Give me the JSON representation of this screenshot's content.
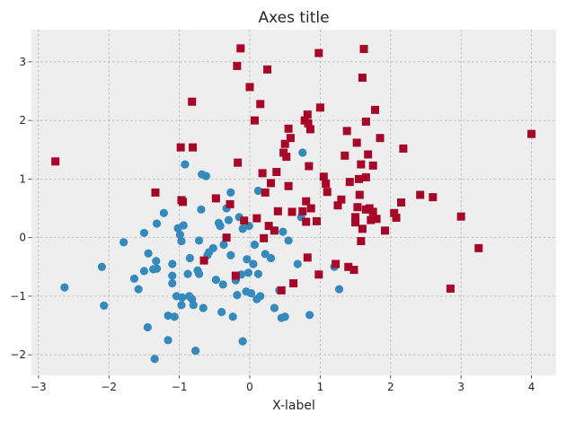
{
  "chart_data": {
    "type": "scatter",
    "title": "Axes title",
    "xlabel": "X-label",
    "ylabel": "",
    "xlim": [
      -3.1,
      4.35
    ],
    "ylim": [
      -2.35,
      3.55
    ],
    "xticks": [
      -3,
      -2,
      -1,
      0,
      1,
      2,
      3,
      4
    ],
    "yticks": [
      -2,
      -1,
      0,
      1,
      2,
      3
    ],
    "xtick_labels": [
      "−3",
      "−2",
      "−1",
      "0",
      "1",
      "2",
      "3",
      "4"
    ],
    "ytick_labels": [
      "−2",
      "−1",
      "0",
      "1",
      "2",
      "3"
    ],
    "grid": true,
    "style": "bmh",
    "background": "#eeeeee",
    "series": [
      {
        "marker": "circle",
        "color": "#348abd",
        "points": [
          [
            -2.63,
            -0.85
          ],
          [
            -2.07,
            -1.16
          ],
          [
            -2.1,
            -0.5
          ],
          [
            -1.79,
            -0.08
          ],
          [
            -1.64,
            -0.7
          ],
          [
            -1.58,
            -0.88
          ],
          [
            -1.5,
            0.08
          ],
          [
            -1.44,
            -0.27
          ],
          [
            -1.5,
            -0.57
          ],
          [
            -1.45,
            -1.53
          ],
          [
            -1.37,
            -0.54
          ],
          [
            -1.32,
            -0.53
          ],
          [
            -1.33,
            -0.4
          ],
          [
            -1.32,
            0.24
          ],
          [
            -1.35,
            -2.07
          ],
          [
            -1.22,
            0.42
          ],
          [
            -1.16,
            -1.33
          ],
          [
            -1.16,
            -1.75
          ],
          [
            -1.1,
            -0.78
          ],
          [
            -1.1,
            -0.65
          ],
          [
            -1.07,
            -1.35
          ],
          [
            -1.1,
            -0.45
          ],
          [
            -1.04,
            -1.0
          ],
          [
            -1.02,
            0.16
          ],
          [
            -0.99,
            0.05
          ],
          [
            -0.97,
            -0.06
          ],
          [
            -0.96,
            -1.02
          ],
          [
            -0.97,
            -1.15
          ],
          [
            -0.94,
            0.21
          ],
          [
            -0.92,
            1.25
          ],
          [
            -0.88,
            -0.62
          ],
          [
            -0.86,
            -1.0
          ],
          [
            -0.85,
            -0.35
          ],
          [
            -0.82,
            -1.05
          ],
          [
            -0.8,
            -1.15
          ],
          [
            -0.77,
            -1.93
          ],
          [
            -0.74,
            -0.56
          ],
          [
            -0.72,
            -0.62
          ],
          [
            -0.72,
            -0.05
          ],
          [
            -0.69,
            0.48
          ],
          [
            -0.68,
            1.08
          ],
          [
            -0.66,
            -1.2
          ],
          [
            -0.62,
            1.05
          ],
          [
            -0.6,
            -0.3
          ],
          [
            -0.58,
            -0.25
          ],
          [
            -0.52,
            -0.18
          ],
          [
            -0.48,
            0.67
          ],
          [
            -0.48,
            -0.72
          ],
          [
            -0.44,
            0.25
          ],
          [
            -0.42,
            0.2
          ],
          [
            -0.42,
            0.2
          ],
          [
            -0.4,
            -1.27
          ],
          [
            -0.38,
            -0.8
          ],
          [
            -0.37,
            -0.12
          ],
          [
            -0.33,
            0.5
          ],
          [
            -0.3,
            0.3
          ],
          [
            -0.27,
            0.77
          ],
          [
            -0.27,
            -0.3
          ],
          [
            -0.24,
            -1.35
          ],
          [
            -0.2,
            -0.73
          ],
          [
            -0.18,
            -0.98
          ],
          [
            -0.15,
            0.35
          ],
          [
            -0.12,
            -0.63
          ],
          [
            -0.1,
            -1.77
          ],
          [
            -0.1,
            0.15
          ],
          [
            -0.05,
            -0.92
          ],
          [
            -0.04,
            -0.37
          ],
          [
            -0.02,
            -0.6
          ],
          [
            -0.01,
            0.2
          ],
          [
            0.02,
            -0.95
          ],
          [
            0.05,
            -0.45
          ],
          [
            0.07,
            -0.12
          ],
          [
            0.1,
            -1.05
          ],
          [
            0.12,
            0.8
          ],
          [
            0.12,
            -0.62
          ],
          [
            0.15,
            -1.0
          ],
          [
            0.22,
            -0.28
          ],
          [
            0.3,
            -0.35
          ],
          [
            0.35,
            -1.2
          ],
          [
            0.42,
            -0.9
          ],
          [
            0.45,
            -1.37
          ],
          [
            0.47,
            0.1
          ],
          [
            0.5,
            -1.35
          ],
          [
            0.55,
            -0.05
          ],
          [
            0.68,
            -0.45
          ],
          [
            0.73,
            0.35
          ],
          [
            0.75,
            1.45
          ],
          [
            0.85,
            -1.32
          ],
          [
            1.2,
            -0.5
          ],
          [
            1.27,
            -0.88
          ]
        ]
      },
      {
        "marker": "square",
        "color": "#a60628",
        "points": [
          [
            -2.76,
            1.3
          ],
          [
            -1.34,
            0.77
          ],
          [
            -0.98,
            1.54
          ],
          [
            -0.97,
            0.64
          ],
          [
            -0.95,
            0.61
          ],
          [
            -0.82,
            2.32
          ],
          [
            -0.81,
            1.54
          ],
          [
            -0.65,
            -0.39
          ],
          [
            -0.48,
            0.67
          ],
          [
            -0.33,
            0.0
          ],
          [
            -0.28,
            0.57
          ],
          [
            -0.2,
            -0.65
          ],
          [
            -0.18,
            2.93
          ],
          [
            -0.17,
            1.28
          ],
          [
            -0.13,
            3.23
          ],
          [
            -0.08,
            0.29
          ],
          [
            0.0,
            2.57
          ],
          [
            0.07,
            2.0
          ],
          [
            0.1,
            0.33
          ],
          [
            0.15,
            2.28
          ],
          [
            0.18,
            1.1
          ],
          [
            0.2,
            -0.01
          ],
          [
            0.22,
            0.77
          ],
          [
            0.25,
            2.87
          ],
          [
            0.27,
            0.2
          ],
          [
            0.3,
            0.93
          ],
          [
            0.35,
            0.12
          ],
          [
            0.38,
            1.12
          ],
          [
            0.4,
            0.45
          ],
          [
            0.45,
            -0.9
          ],
          [
            0.48,
            1.45
          ],
          [
            0.5,
            1.6
          ],
          [
            0.52,
            1.38
          ],
          [
            0.55,
            1.86
          ],
          [
            0.55,
            0.88
          ],
          [
            0.58,
            1.7
          ],
          [
            0.6,
            0.44
          ],
          [
            0.62,
            -0.78
          ],
          [
            0.75,
            0.45
          ],
          [
            0.78,
            2.0
          ],
          [
            0.8,
            0.62
          ],
          [
            0.8,
            0.27
          ],
          [
            0.82,
            -0.34
          ],
          [
            0.82,
            2.1
          ],
          [
            0.83,
            1.95
          ],
          [
            0.84,
            1.22
          ],
          [
            0.86,
            1.85
          ],
          [
            0.87,
            0.5
          ],
          [
            0.95,
            0.28
          ],
          [
            0.98,
            -0.63
          ],
          [
            0.98,
            3.15
          ],
          [
            1.0,
            2.22
          ],
          [
            1.05,
            1.04
          ],
          [
            1.08,
            0.92
          ],
          [
            1.1,
            0.78
          ],
          [
            1.25,
            0.55
          ],
          [
            1.22,
            -0.45
          ],
          [
            1.3,
            0.65
          ],
          [
            1.35,
            1.4
          ],
          [
            1.4,
            -0.5
          ],
          [
            1.38,
            1.82
          ],
          [
            1.42,
            0.95
          ],
          [
            1.48,
            -0.55
          ],
          [
            1.5,
            0.26
          ],
          [
            1.5,
            0.35
          ],
          [
            1.52,
            1.62
          ],
          [
            1.53,
            0.52
          ],
          [
            1.55,
            1.0
          ],
          [
            1.56,
            0.73
          ],
          [
            1.58,
            1.25
          ],
          [
            1.58,
            -0.06
          ],
          [
            1.6,
            0.15
          ],
          [
            1.6,
            2.73
          ],
          [
            1.62,
            3.22
          ],
          [
            1.65,
            1.03
          ],
          [
            1.65,
            1.98
          ],
          [
            1.65,
            0.48
          ],
          [
            1.68,
            1.42
          ],
          [
            1.7,
            0.5
          ],
          [
            1.72,
            0.3
          ],
          [
            1.75,
            0.44
          ],
          [
            1.75,
            1.23
          ],
          [
            1.78,
            2.18
          ],
          [
            1.8,
            0.32
          ],
          [
            1.85,
            1.7
          ],
          [
            1.92,
            0.12
          ],
          [
            2.05,
            0.42
          ],
          [
            2.08,
            0.34
          ],
          [
            2.15,
            0.6
          ],
          [
            2.18,
            1.52
          ],
          [
            2.42,
            0.73
          ],
          [
            2.6,
            0.69
          ],
          [
            2.85,
            -0.87
          ],
          [
            3.0,
            0.36
          ],
          [
            3.25,
            -0.18
          ],
          [
            4.0,
            1.77
          ]
        ]
      }
    ]
  }
}
